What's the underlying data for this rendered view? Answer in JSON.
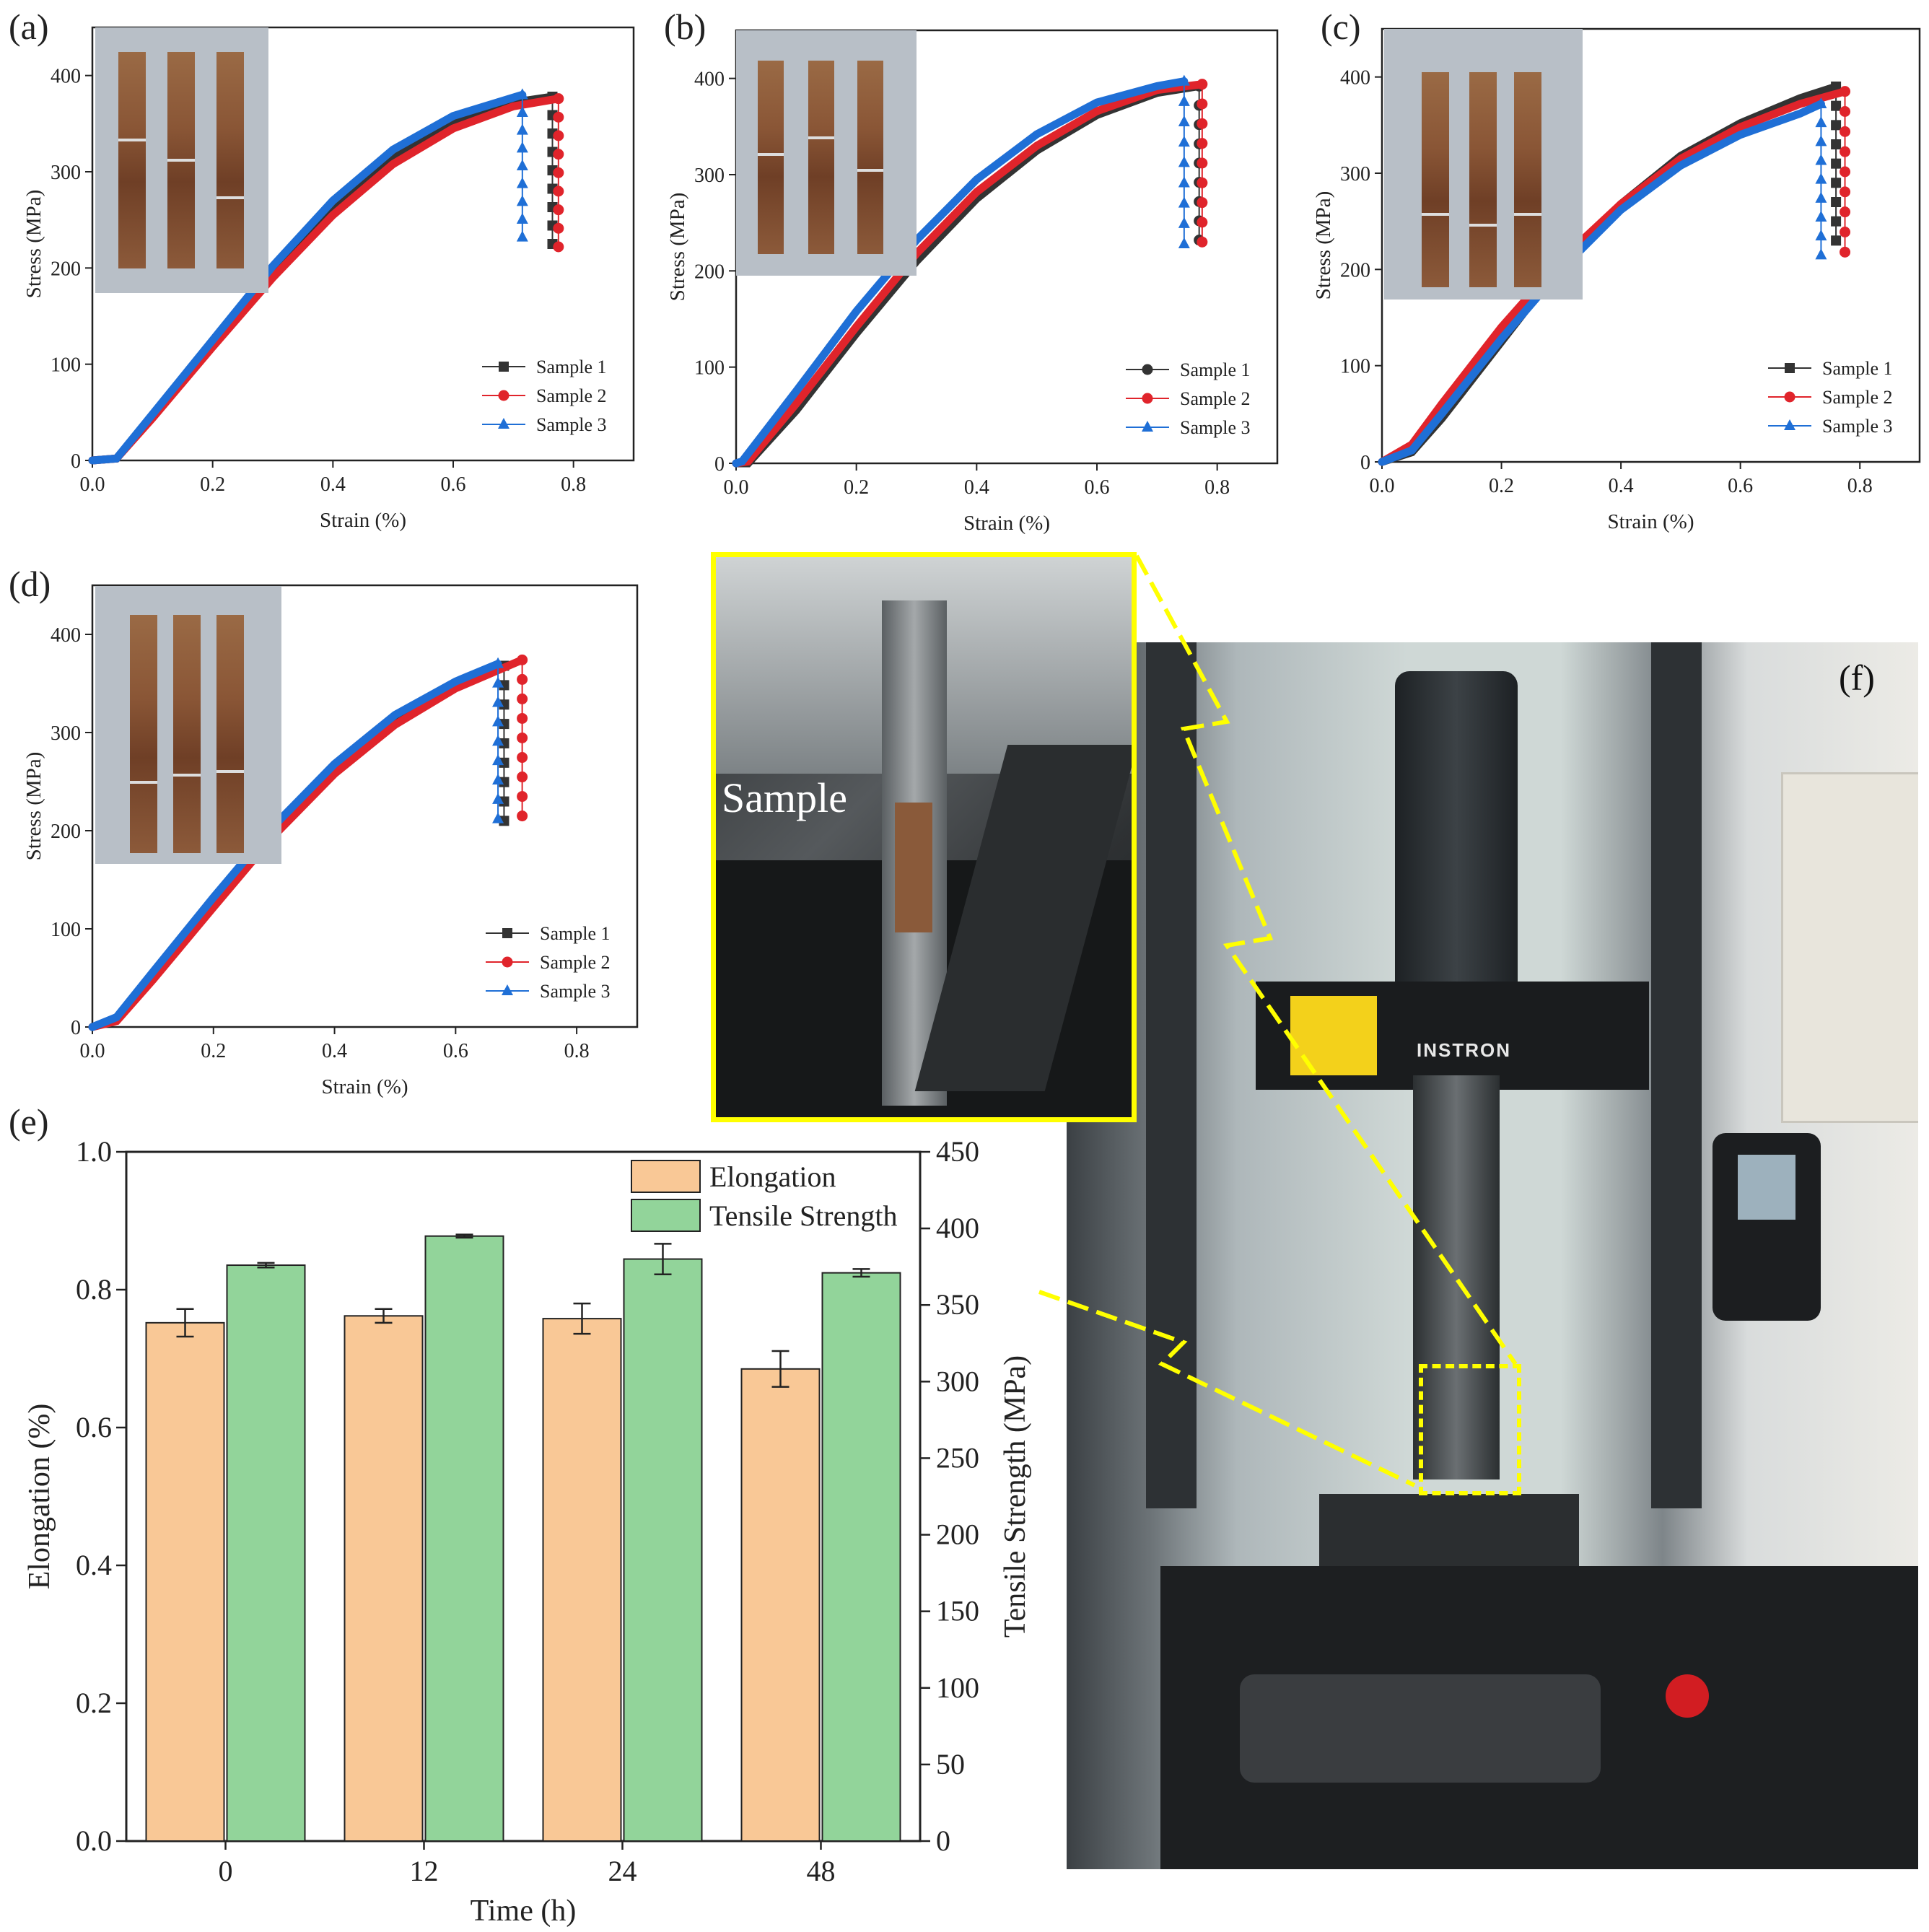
{
  "panel_labels": {
    "a": "(a)",
    "b": "(b)",
    "c": "(c)",
    "d": "(d)",
    "e": "(e)",
    "f": "(f)"
  },
  "photo_text": {
    "sample_label": "Sample",
    "machine_brand": "INSTRON"
  },
  "colors": {
    "sample1": "#333333",
    "sample2": "#e0242b",
    "sample3": "#1f6fd6",
    "elongation": "#f9c896",
    "tensile": "#92d49a",
    "highlight": "#ffff00"
  },
  "chart_data": [
    {
      "type": "line",
      "panel": "(a)",
      "xlabel": "Strain (%)",
      "ylabel": "Stress (MPa)",
      "xlim": [
        0,
        0.9
      ],
      "ylim": [
        0,
        450
      ],
      "xticks": [
        "0.0",
        "0.2",
        "0.4",
        "0.6",
        "0.8"
      ],
      "yticks": [
        "0",
        "100",
        "200",
        "300",
        "400"
      ],
      "legend_position": "bottom-right",
      "series": [
        {
          "name": "Sample 1",
          "marker": "square",
          "points": [
            [
              0,
              0
            ],
            [
              0.04,
              2
            ],
            [
              0.1,
              45
            ],
            [
              0.2,
              120
            ],
            [
              0.3,
              195
            ],
            [
              0.4,
              262
            ],
            [
              0.5,
              315
            ],
            [
              0.6,
              352
            ],
            [
              0.7,
              372
            ],
            [
              0.765,
              378
            ]
          ],
          "drop": [
            0.765,
            378,
            225
          ]
        },
        {
          "name": "Sample 2",
          "marker": "circle",
          "points": [
            [
              0,
              0
            ],
            [
              0.04,
              2
            ],
            [
              0.1,
              44
            ],
            [
              0.2,
              118
            ],
            [
              0.3,
              190
            ],
            [
              0.4,
              255
            ],
            [
              0.5,
              308
            ],
            [
              0.6,
              345
            ],
            [
              0.7,
              368
            ],
            [
              0.775,
              376
            ]
          ],
          "drop": [
            0.775,
            376,
            222
          ]
        },
        {
          "name": "Sample 3",
          "marker": "triangle",
          "points": [
            [
              0,
              0
            ],
            [
              0.04,
              2
            ],
            [
              0.1,
              48
            ],
            [
              0.2,
              125
            ],
            [
              0.3,
              202
            ],
            [
              0.4,
              270
            ],
            [
              0.5,
              323
            ],
            [
              0.6,
              358
            ],
            [
              0.715,
              380
            ]
          ],
          "drop": [
            0.715,
            380,
            232
          ]
        }
      ]
    },
    {
      "type": "line",
      "panel": "(b)",
      "xlabel": "Strain (%)",
      "ylabel": "Stress (MPa)",
      "xlim": [
        0,
        0.9
      ],
      "ylim": [
        0,
        450
      ],
      "xticks": [
        "0.0",
        "0.2",
        "0.4",
        "0.6",
        "0.8"
      ],
      "yticks": [
        "0",
        "100",
        "200",
        "300",
        "400"
      ],
      "legend_position": "bottom-right",
      "series": [
        {
          "name": "Sample 1",
          "marker": "circle",
          "points": [
            [
              0,
              0
            ],
            [
              0.02,
              0
            ],
            [
              0.1,
              55
            ],
            [
              0.2,
              135
            ],
            [
              0.3,
              210
            ],
            [
              0.4,
              275
            ],
            [
              0.5,
              325
            ],
            [
              0.6,
              362
            ],
            [
              0.7,
              385
            ],
            [
              0.77,
              392
            ]
          ],
          "drop": [
            0.77,
            392,
            232
          ]
        },
        {
          "name": "Sample 2",
          "marker": "circle",
          "points": [
            [
              0,
              0
            ],
            [
              0.02,
              2
            ],
            [
              0.1,
              62
            ],
            [
              0.2,
              142
            ],
            [
              0.3,
              218
            ],
            [
              0.4,
              282
            ],
            [
              0.5,
              330
            ],
            [
              0.6,
              366
            ],
            [
              0.7,
              388
            ],
            [
              0.775,
              394
            ]
          ],
          "drop": [
            0.775,
            394,
            230
          ]
        },
        {
          "name": "Sample 3",
          "marker": "triangle",
          "points": [
            [
              0,
              0
            ],
            [
              0.01,
              2
            ],
            [
              0.1,
              75
            ],
            [
              0.2,
              158
            ],
            [
              0.3,
              232
            ],
            [
              0.4,
              295
            ],
            [
              0.5,
              342
            ],
            [
              0.6,
              375
            ],
            [
              0.7,
              392
            ],
            [
              0.745,
              397
            ]
          ],
          "drop": [
            0.745,
            397,
            228
          ]
        }
      ]
    },
    {
      "type": "line",
      "panel": "(c)",
      "xlabel": "Strain (%)",
      "ylabel": "Stress (MPa)",
      "xlim": [
        0,
        0.9
      ],
      "ylim": [
        0,
        450
      ],
      "xticks": [
        "0.0",
        "0.2",
        "0.4",
        "0.6",
        "0.8"
      ],
      "yticks": [
        "0",
        "100",
        "200",
        "300",
        "400"
      ],
      "legend_position": "bottom-right",
      "series": [
        {
          "name": "Sample 1",
          "marker": "square",
          "points": [
            [
              0,
              0
            ],
            [
              0.05,
              10
            ],
            [
              0.1,
              45
            ],
            [
              0.2,
              125
            ],
            [
              0.3,
              205
            ],
            [
              0.4,
              268
            ],
            [
              0.5,
              318
            ],
            [
              0.6,
              352
            ],
            [
              0.7,
              378
            ],
            [
              0.76,
              390
            ]
          ],
          "drop": [
            0.76,
            390,
            230
          ]
        },
        {
          "name": "Sample 2",
          "marker": "circle",
          "points": [
            [
              0,
              0
            ],
            [
              0.05,
              18
            ],
            [
              0.1,
              60
            ],
            [
              0.2,
              140
            ],
            [
              0.3,
              210
            ],
            [
              0.4,
              268
            ],
            [
              0.5,
              315
            ],
            [
              0.6,
              348
            ],
            [
              0.7,
              372
            ],
            [
              0.775,
              385
            ]
          ],
          "drop": [
            0.775,
            385,
            218
          ]
        },
        {
          "name": "Sample 3",
          "marker": "triangle",
          "points": [
            [
              0,
              0
            ],
            [
              0.05,
              12
            ],
            [
              0.1,
              50
            ],
            [
              0.2,
              128
            ],
            [
              0.3,
              200
            ],
            [
              0.4,
              262
            ],
            [
              0.5,
              308
            ],
            [
              0.6,
              340
            ],
            [
              0.7,
              362
            ],
            [
              0.735,
              372
            ]
          ],
          "drop": [
            0.735,
            372,
            215
          ]
        }
      ]
    },
    {
      "type": "line",
      "panel": "(d)",
      "xlabel": "Strain (%)",
      "ylabel": "Stress (MPa)",
      "xlim": [
        0,
        0.9
      ],
      "ylim": [
        0,
        450
      ],
      "xticks": [
        "0.0",
        "0.2",
        "0.4",
        "0.6",
        "0.8"
      ],
      "yticks": [
        "0",
        "100",
        "200",
        "300",
        "400"
      ],
      "legend_position": "bottom-right",
      "series": [
        {
          "name": "Sample 1",
          "marker": "square",
          "points": [
            [
              0,
              0
            ],
            [
              0.04,
              8
            ],
            [
              0.1,
              52
            ],
            [
              0.2,
              128
            ],
            [
              0.3,
              200
            ],
            [
              0.4,
              262
            ],
            [
              0.5,
              312
            ],
            [
              0.6,
              348
            ],
            [
              0.68,
              368
            ]
          ],
          "drop": [
            0.68,
            368,
            210
          ]
        },
        {
          "name": "Sample 2",
          "marker": "circle",
          "points": [
            [
              0,
              0
            ],
            [
              0.04,
              6
            ],
            [
              0.1,
              48
            ],
            [
              0.2,
              122
            ],
            [
              0.3,
              195
            ],
            [
              0.4,
              258
            ],
            [
              0.5,
              308
            ],
            [
              0.6,
              345
            ],
            [
              0.71,
              374
            ]
          ],
          "drop": [
            0.71,
            374,
            215
          ]
        },
        {
          "name": "Sample 3",
          "marker": "triangle",
          "points": [
            [
              0,
              0
            ],
            [
              0.04,
              10
            ],
            [
              0.1,
              56
            ],
            [
              0.2,
              132
            ],
            [
              0.3,
              205
            ],
            [
              0.4,
              268
            ],
            [
              0.5,
              318
            ],
            [
              0.6,
              352
            ],
            [
              0.67,
              370
            ]
          ],
          "drop": [
            0.67,
            370,
            212
          ]
        }
      ]
    },
    {
      "type": "bar",
      "panel": "(e)",
      "xlabel": "Time (h)",
      "ylabel": "Elongation (%)",
      "y2label": "Tensile Strength (MPa)",
      "categories": [
        "0",
        "12",
        "24",
        "48"
      ],
      "ylim": [
        0,
        1.0
      ],
      "y2lim": [
        0,
        450
      ],
      "yticks": [
        "0.0",
        "0.2",
        "0.4",
        "0.6",
        "0.8",
        "1.0"
      ],
      "y2ticks": [
        "0",
        "50",
        "100",
        "150",
        "200",
        "250",
        "300",
        "350",
        "400",
        "450"
      ],
      "legend_position": "top-right",
      "series": [
        {
          "name": "Elongation",
          "axis": "left",
          "values": [
            0.752,
            0.762,
            0.758,
            0.685
          ],
          "errors": [
            0.02,
            0.01,
            0.022,
            0.026
          ]
        },
        {
          "name": "Tensile Strength",
          "axis": "right",
          "values": [
            376,
            395,
            380,
            371
          ],
          "errors": [
            1.5,
            1.0,
            10,
            2.5
          ]
        }
      ]
    }
  ]
}
